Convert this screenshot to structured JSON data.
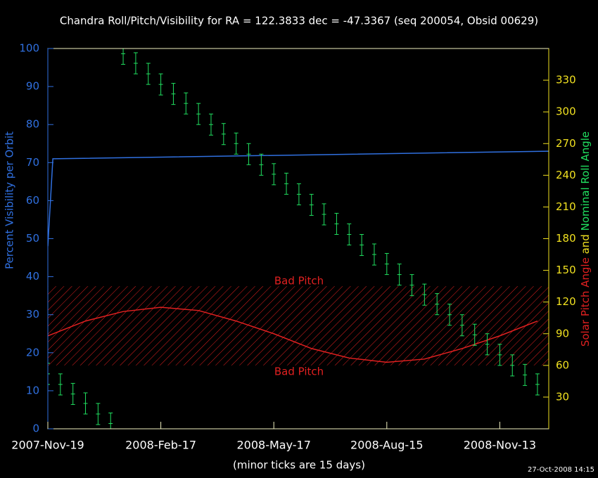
{
  "chart_data": {
    "type": "line",
    "title": "Chandra Roll/Pitch/Visibility for RA = 122.3833 dec = -47.3367 (seq 200054, Obsid 00629)",
    "xlabel": "(minor ticks are 15 days)",
    "ylabel": "Percent Visibility per Orbit",
    "y2label_parts": [
      {
        "text": "Solar Pitch Angle",
        "color": "#e02020"
      },
      {
        "text": "and",
        "color": "#f0e020"
      },
      {
        "text": "Nominal Roll Angle",
        "color": "#20e060"
      }
    ],
    "timestamp": "27-Oct-2008 14:15",
    "xlim": [
      "2007-11-19",
      "2008-12-22"
    ],
    "xticks": [
      {
        "value": "2007-11-19",
        "label": "2007-Nov-19"
      },
      {
        "value": "2008-02-17",
        "label": "2008-Feb-17"
      },
      {
        "value": "2008-05-17",
        "label": "2008-May-17"
      },
      {
        "value": "2008-08-15",
        "label": "2008-Aug-15"
      },
      {
        "value": "2008-11-13",
        "label": "2008-Nov-13"
      }
    ],
    "ylim": [
      0,
      100
    ],
    "yticks": [
      0,
      10,
      20,
      30,
      40,
      50,
      60,
      70,
      80,
      90,
      100
    ],
    "y2lim": [
      0,
      360
    ],
    "y2ticks": [
      30,
      60,
      90,
      120,
      150,
      180,
      210,
      240,
      270,
      300,
      330
    ],
    "bad_pitch": {
      "from": 60,
      "to": 135,
      "color": "#e02020",
      "labels": [
        "Bad Pitch",
        "Bad Pitch"
      ]
    },
    "series": [
      {
        "name": "Percent Visibility per Orbit",
        "color": "#3070e0",
        "axis": "y",
        "style": "line",
        "x": [
          "2007-11-19",
          "2007-11-23",
          "2008-12-22"
        ],
        "values": [
          48,
          71,
          73
        ]
      },
      {
        "name": "Solar Pitch Angle",
        "color": "#e02020",
        "axis": "y2",
        "style": "line",
        "x": [
          "2007-11-19",
          "2007-12-19",
          "2008-01-18",
          "2008-02-17",
          "2008-03-18",
          "2008-04-17",
          "2008-05-17",
          "2008-06-16",
          "2008-07-16",
          "2008-08-15",
          "2008-09-14",
          "2008-10-14",
          "2008-11-13",
          "2008-12-13"
        ],
        "values": [
          88,
          102,
          111,
          115,
          112,
          102,
          90,
          76,
          67,
          63,
          66,
          76,
          88,
          102
        ]
      },
      {
        "name": "Nominal Roll Angle",
        "color": "#20e060",
        "axis": "y2",
        "style": "errorbar",
        "error": 10,
        "x": [
          "2007-11-19",
          "2007-11-29",
          "2007-12-09",
          "2007-12-19",
          "2007-12-29",
          "2008-01-08",
          "2008-01-18",
          "2008-01-28",
          "2008-02-07",
          "2008-02-17",
          "2008-02-27",
          "2008-03-08",
          "2008-03-18",
          "2008-03-28",
          "2008-04-07",
          "2008-04-17",
          "2008-04-27",
          "2008-05-07",
          "2008-05-17",
          "2008-05-27",
          "2008-06-06",
          "2008-06-16",
          "2008-06-26",
          "2008-07-06",
          "2008-07-16",
          "2008-07-26",
          "2008-08-05",
          "2008-08-15",
          "2008-08-25",
          "2008-09-04",
          "2008-09-14",
          "2008-09-24",
          "2008-10-04",
          "2008-10-14",
          "2008-10-24",
          "2008-11-03",
          "2008-11-13",
          "2008-11-23",
          "2008-12-03",
          "2008-12-13"
        ],
        "values": [
          52,
          42,
          33,
          24,
          14,
          5,
          355,
          346,
          336,
          326,
          317,
          308,
          298,
          288,
          279,
          270,
          260,
          250,
          241,
          232,
          222,
          212,
          203,
          194,
          184,
          174,
          165,
          156,
          146,
          136,
          127,
          118,
          108,
          98,
          89,
          80,
          70,
          60,
          51,
          42
        ]
      }
    ]
  }
}
